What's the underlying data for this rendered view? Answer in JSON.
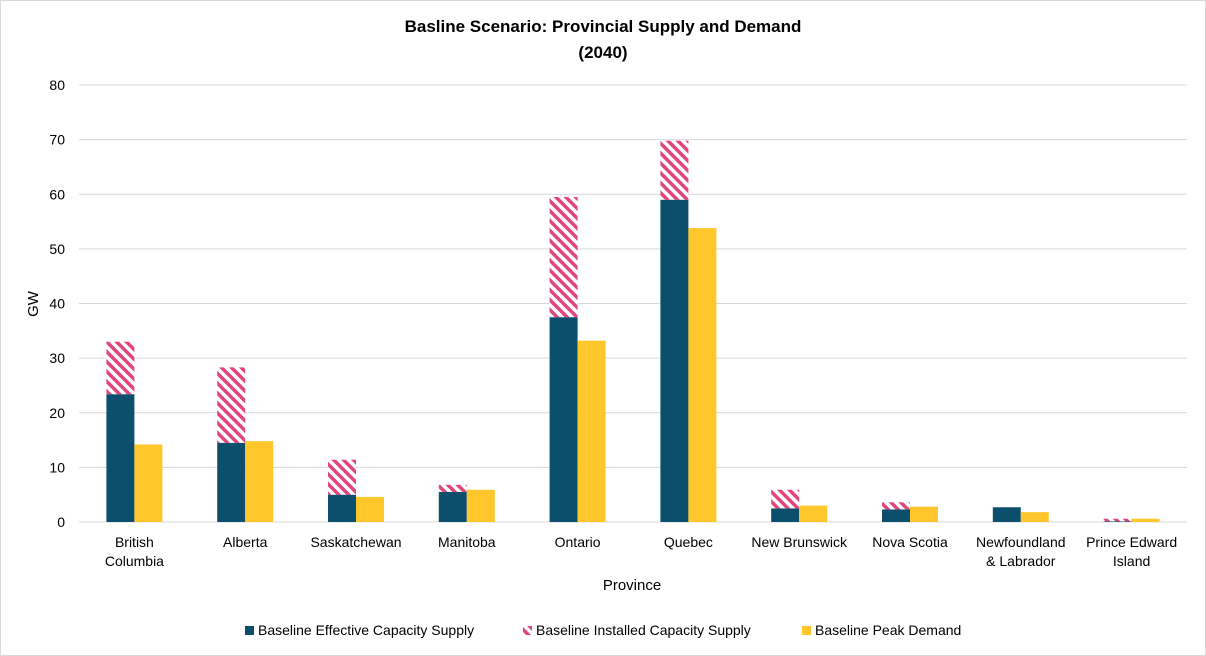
{
  "chart_data": {
    "type": "bar",
    "title_lines": [
      "Basline Scenario: Provincial Supply and Demand",
      "(2040)"
    ],
    "xlabel": "Province",
    "ylabel": "GW",
    "ylim": [
      0,
      80
    ],
    "yticks": [
      0,
      10,
      20,
      30,
      40,
      50,
      60,
      70,
      80
    ],
    "grid": true,
    "legend_position": "bottom",
    "categories": [
      [
        "British",
        "Columbia"
      ],
      [
        "Alberta"
      ],
      [
        "Saskatchewan"
      ],
      [
        "Manitoba"
      ],
      [
        "Ontario"
      ],
      [
        "Quebec"
      ],
      [
        "New Brunswick"
      ],
      [
        "Nova Scotia"
      ],
      [
        "Newfoundland",
        "& Labrador"
      ],
      [
        "Prince Edward",
        "Island"
      ]
    ],
    "series": [
      {
        "name": "Baseline Effective Capacity Supply",
        "stack": "supply",
        "color": "#0b4f6c",
        "pattern": "solid",
        "values": [
          23.4,
          14.5,
          5.0,
          5.5,
          37.5,
          59.0,
          2.5,
          2.3,
          2.7,
          0.1
        ]
      },
      {
        "name": "Baseline Installed Capacity Supply",
        "stack": "supply",
        "color": "#e0457b",
        "pattern": "diagonal-hatch",
        "values": [
          9.6,
          13.8,
          6.4,
          1.3,
          22.0,
          10.8,
          3.4,
          1.3,
          0.0,
          0.5
        ]
      },
      {
        "name": "Baseline Peak Demand",
        "stack": "demand",
        "color": "#ffc72c",
        "pattern": "solid",
        "values": [
          14.2,
          14.8,
          4.6,
          5.9,
          33.2,
          53.8,
          3.0,
          2.8,
          1.8,
          0.6
        ]
      }
    ]
  }
}
